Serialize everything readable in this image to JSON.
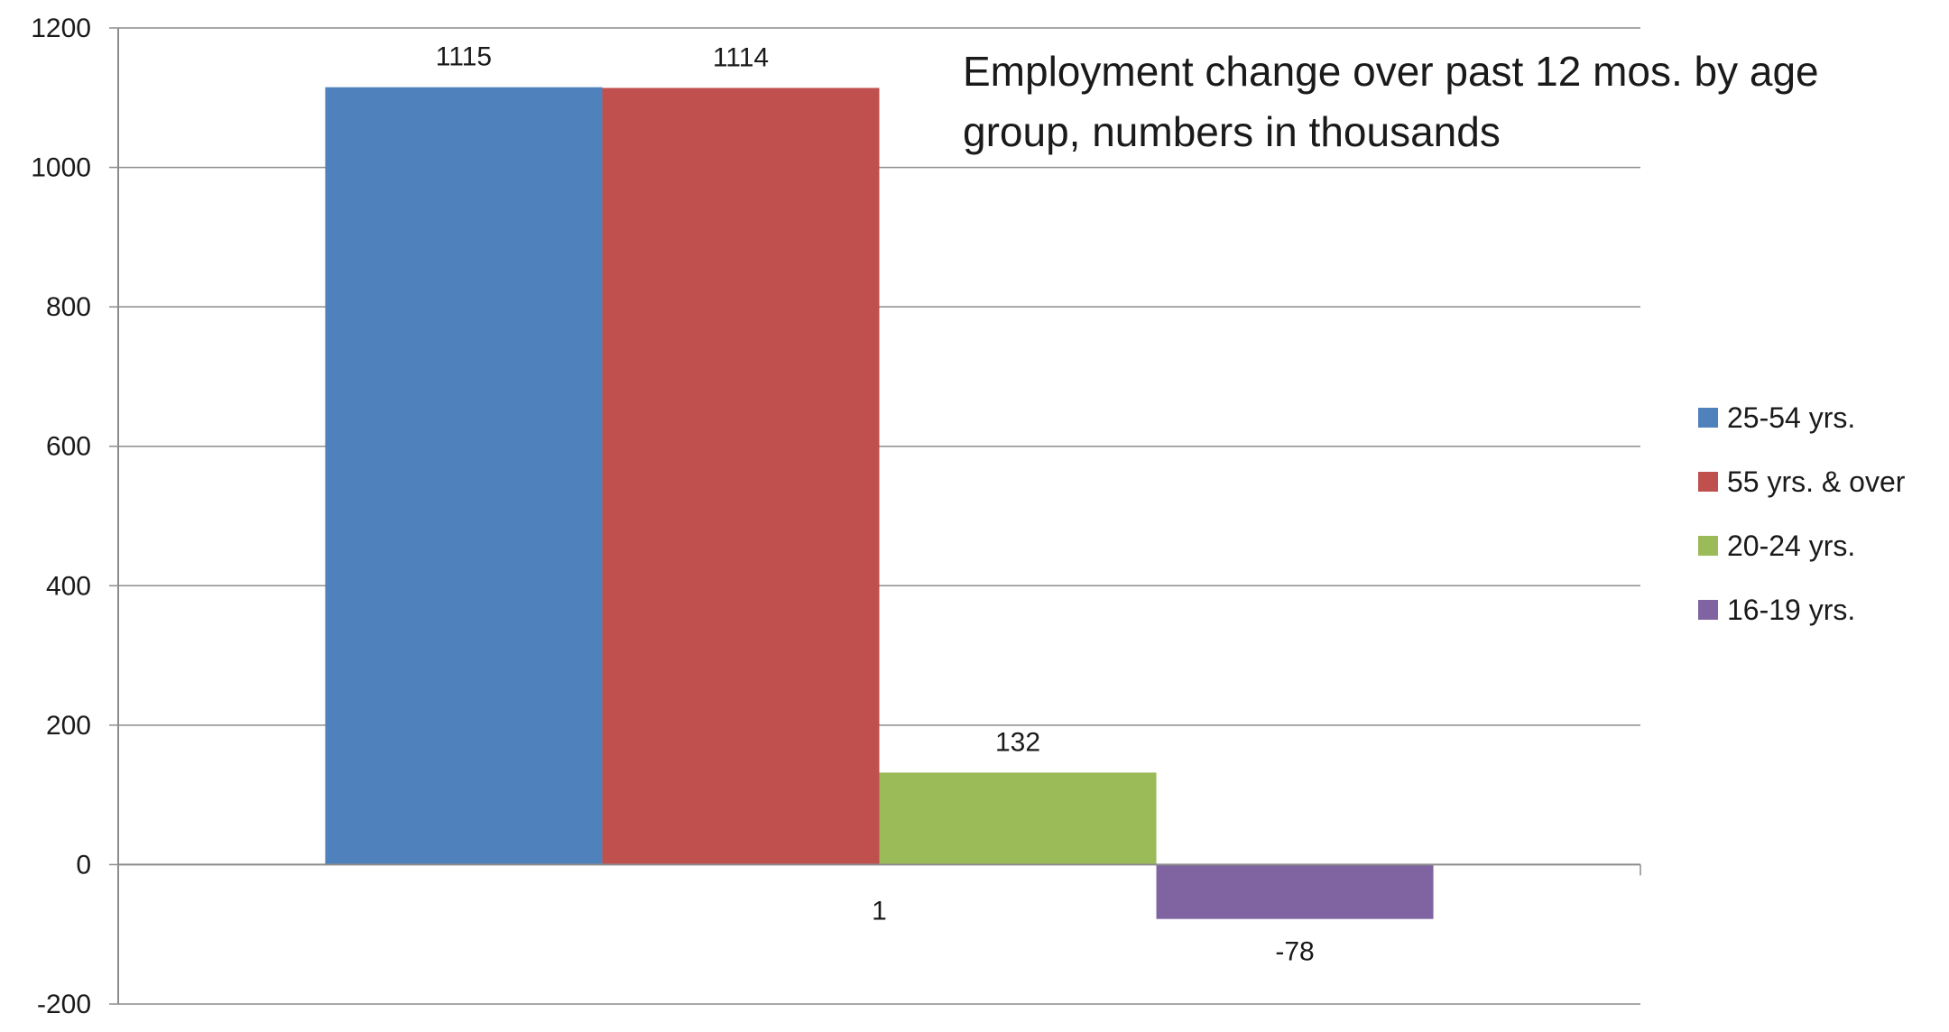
{
  "chart_data": {
    "type": "bar",
    "title_lines": [
      "Employment change over past 12 mos. by age",
      "group, numbers in thousands"
    ],
    "xlabel": "",
    "ylabel": "",
    "category_label": "1",
    "ylim": [
      -200,
      1200
    ],
    "yticks": [
      -200,
      0,
      200,
      400,
      600,
      800,
      1000,
      1200
    ],
    "grid": true,
    "legend_position": "right",
    "series": [
      {
        "name": "25-54 yrs.",
        "value": 1115,
        "color": "#4F81BD"
      },
      {
        "name": "55 yrs. & over",
        "value": 1114,
        "color": "#C0504D"
      },
      {
        "name": "20-24 yrs.",
        "value": 132,
        "color": "#9BBB59"
      },
      {
        "name": "16-19 yrs.",
        "value": -78,
        "color": "#8064A2"
      }
    ]
  }
}
